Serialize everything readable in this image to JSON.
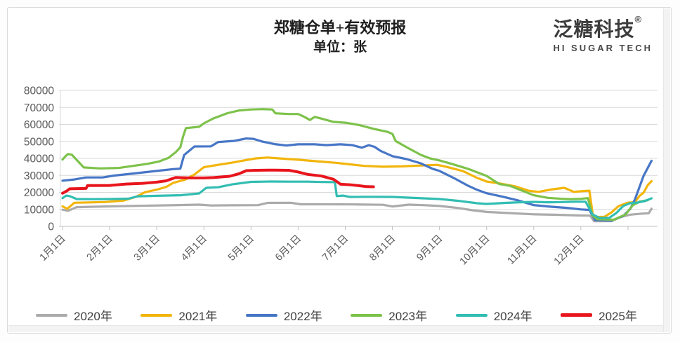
{
  "header": {
    "title": "郑糖仓单+有效预报",
    "subtitle": "单位：张"
  },
  "logo": {
    "brand": "泛糖科技",
    "registered": "®",
    "tagline": "HI SUGAR TECH"
  },
  "chart_data": {
    "type": "line",
    "title": "郑糖仓单+有效预报",
    "unit": "张",
    "grid": true,
    "legend_position": "bottom",
    "x_axis": {
      "tick_labels": [
        "1月1日",
        "2月1日",
        "3月1日",
        "4月1日",
        "5月1日",
        "6月1日",
        "7月1日",
        "8月1日",
        "9月1日",
        "10月1日",
        "11月1日",
        "12月1日"
      ],
      "note": "series x values are months since Jan 1 (0 = 1月1日, 11 = 12月1日)",
      "xlim": [
        0,
        12.6
      ]
    },
    "y_axis": {
      "min": 0,
      "max": 80000,
      "step": 10000,
      "tick_labels": [
        "0",
        "10000",
        "20000",
        "30000",
        "40000",
        "50000",
        "60000",
        "70000",
        "80000"
      ]
    },
    "axis_label_color": "#595959",
    "gridline_color": "#d9d9d9",
    "series": [
      {
        "name": "2020年",
        "color": "#ABABAB",
        "width": 3.2,
        "points": [
          [
            0,
            9800
          ],
          [
            0.12,
            9200
          ],
          [
            0.3,
            11300
          ],
          [
            0.9,
            11700
          ],
          [
            1.6,
            12100
          ],
          [
            2.3,
            12400
          ],
          [
            2.9,
            12800
          ],
          [
            3.15,
            12300
          ],
          [
            3.6,
            12400
          ],
          [
            4.15,
            12500
          ],
          [
            4.35,
            13800
          ],
          [
            4.85,
            13900
          ],
          [
            5.05,
            13000
          ],
          [
            5.6,
            13000
          ],
          [
            6.2,
            12900
          ],
          [
            6.8,
            12700
          ],
          [
            7.0,
            11700
          ],
          [
            7.35,
            12800
          ],
          [
            7.65,
            12500
          ],
          [
            8.0,
            12000
          ],
          [
            8.4,
            10800
          ],
          [
            8.7,
            9500
          ],
          [
            9.0,
            8500
          ],
          [
            9.5,
            7800
          ],
          [
            10.0,
            7100
          ],
          [
            10.5,
            6800
          ],
          [
            11.0,
            6400
          ],
          [
            11.2,
            6300
          ],
          [
            11.28,
            3000
          ],
          [
            11.65,
            3100
          ],
          [
            11.85,
            5600
          ],
          [
            12.05,
            6900
          ],
          [
            12.3,
            7500
          ],
          [
            12.44,
            7700
          ],
          [
            12.5,
            10400
          ]
        ]
      },
      {
        "name": "2021年",
        "color": "#F2B50B",
        "width": 3.2,
        "points": [
          [
            0,
            11800
          ],
          [
            0.1,
            10300
          ],
          [
            0.25,
            13900
          ],
          [
            0.9,
            14300
          ],
          [
            1.3,
            15200
          ],
          [
            1.55,
            17300
          ],
          [
            1.75,
            20100
          ],
          [
            2.0,
            21600
          ],
          [
            2.2,
            23200
          ],
          [
            2.35,
            25600
          ],
          [
            2.6,
            27500
          ],
          [
            2.8,
            30500
          ],
          [
            3.0,
            34800
          ],
          [
            3.3,
            36200
          ],
          [
            3.6,
            37500
          ],
          [
            3.85,
            38800
          ],
          [
            4.1,
            40000
          ],
          [
            4.35,
            40500
          ],
          [
            4.7,
            39800
          ],
          [
            5.0,
            39200
          ],
          [
            5.4,
            38300
          ],
          [
            5.8,
            37400
          ],
          [
            6.1,
            36500
          ],
          [
            6.4,
            35600
          ],
          [
            6.8,
            35100
          ],
          [
            7.2,
            35300
          ],
          [
            7.6,
            35800
          ],
          [
            7.95,
            36200
          ],
          [
            8.15,
            35000
          ],
          [
            8.5,
            32500
          ],
          [
            8.8,
            28500
          ],
          [
            9.0,
            26400
          ],
          [
            9.3,
            25100
          ],
          [
            9.6,
            23600
          ],
          [
            9.9,
            20900
          ],
          [
            10.1,
            20300
          ],
          [
            10.4,
            21800
          ],
          [
            10.65,
            22700
          ],
          [
            10.85,
            20300
          ],
          [
            11.05,
            20800
          ],
          [
            11.18,
            21000
          ],
          [
            11.26,
            5500
          ],
          [
            11.5,
            5600
          ],
          [
            11.65,
            8200
          ],
          [
            11.8,
            11900
          ],
          [
            12.0,
            14000
          ],
          [
            12.15,
            14300
          ],
          [
            12.25,
            18100
          ],
          [
            12.33,
            19800
          ],
          [
            12.42,
            24300
          ],
          [
            12.5,
            26600
          ]
        ]
      },
      {
        "name": "2022年",
        "color": "#4776C6",
        "width": 3.2,
        "points": [
          [
            0,
            26900
          ],
          [
            0.25,
            27600
          ],
          [
            0.5,
            28800
          ],
          [
            0.85,
            28800
          ],
          [
            1.1,
            29900
          ],
          [
            1.5,
            31100
          ],
          [
            2.0,
            32600
          ],
          [
            2.35,
            33700
          ],
          [
            2.5,
            34000
          ],
          [
            2.58,
            42000
          ],
          [
            2.8,
            47000
          ],
          [
            3.15,
            47100
          ],
          [
            3.3,
            49600
          ],
          [
            3.65,
            50300
          ],
          [
            3.9,
            51700
          ],
          [
            4.05,
            51500
          ],
          [
            4.25,
            49800
          ],
          [
            4.5,
            48400
          ],
          [
            4.75,
            47600
          ],
          [
            5.0,
            48300
          ],
          [
            5.35,
            48300
          ],
          [
            5.6,
            47800
          ],
          [
            5.9,
            48300
          ],
          [
            6.15,
            47800
          ],
          [
            6.35,
            46300
          ],
          [
            6.5,
            47800
          ],
          [
            6.62,
            46800
          ],
          [
            6.75,
            44400
          ],
          [
            7.0,
            41300
          ],
          [
            7.3,
            39600
          ],
          [
            7.6,
            37100
          ],
          [
            7.85,
            33900
          ],
          [
            8.0,
            32600
          ],
          [
            8.3,
            28500
          ],
          [
            8.6,
            24000
          ],
          [
            8.8,
            21500
          ],
          [
            9.0,
            19500
          ],
          [
            9.35,
            17400
          ],
          [
            9.65,
            15400
          ],
          [
            10.0,
            12500
          ],
          [
            10.35,
            11600
          ],
          [
            10.7,
            10900
          ],
          [
            11.0,
            10000
          ],
          [
            11.18,
            9700
          ],
          [
            11.3,
            3700
          ],
          [
            11.65,
            3400
          ],
          [
            11.9,
            6100
          ],
          [
            12.05,
            10300
          ],
          [
            12.15,
            16000
          ],
          [
            12.25,
            23600
          ],
          [
            12.33,
            29700
          ],
          [
            12.5,
            38600
          ]
        ]
      },
      {
        "name": "2023年",
        "color": "#7DC24B",
        "width": 3.2,
        "points": [
          [
            0,
            39300
          ],
          [
            0.07,
            41500
          ],
          [
            0.12,
            42600
          ],
          [
            0.2,
            42100
          ],
          [
            0.32,
            38500
          ],
          [
            0.45,
            34700
          ],
          [
            0.8,
            34100
          ],
          [
            1.2,
            34400
          ],
          [
            1.5,
            35600
          ],
          [
            1.8,
            36800
          ],
          [
            2.05,
            38200
          ],
          [
            2.25,
            40300
          ],
          [
            2.4,
            43600
          ],
          [
            2.5,
            46500
          ],
          [
            2.56,
            53000
          ],
          [
            2.62,
            57800
          ],
          [
            2.9,
            58600
          ],
          [
            3.0,
            60600
          ],
          [
            3.2,
            63500
          ],
          [
            3.5,
            66600
          ],
          [
            3.75,
            68200
          ],
          [
            4.0,
            68800
          ],
          [
            4.25,
            69000
          ],
          [
            4.45,
            68800
          ],
          [
            4.52,
            66500
          ],
          [
            4.8,
            66100
          ],
          [
            5.0,
            66100
          ],
          [
            5.12,
            64600
          ],
          [
            5.25,
            62600
          ],
          [
            5.35,
            64400
          ],
          [
            5.5,
            63400
          ],
          [
            5.75,
            61500
          ],
          [
            6.0,
            61000
          ],
          [
            6.3,
            59600
          ],
          [
            6.6,
            57400
          ],
          [
            6.9,
            55600
          ],
          [
            7.0,
            54400
          ],
          [
            7.07,
            50200
          ],
          [
            7.3,
            46600
          ],
          [
            7.6,
            42100
          ],
          [
            7.8,
            40000
          ],
          [
            8.0,
            38800
          ],
          [
            8.3,
            36400
          ],
          [
            8.6,
            33900
          ],
          [
            9.0,
            29700
          ],
          [
            9.27,
            24900
          ],
          [
            9.5,
            23800
          ],
          [
            9.8,
            20500
          ],
          [
            10.0,
            18300
          ],
          [
            10.3,
            16800
          ],
          [
            10.6,
            16200
          ],
          [
            10.8,
            16000
          ],
          [
            11.0,
            16200
          ],
          [
            11.15,
            16600
          ],
          [
            11.25,
            6300
          ],
          [
            11.35,
            4200
          ],
          [
            11.7,
            3900
          ],
          [
            11.95,
            7000
          ],
          [
            12.1,
            12400
          ],
          [
            12.25,
            14600
          ],
          [
            12.42,
            15400
          ]
        ]
      },
      {
        "name": "2024年",
        "color": "#32BDB2",
        "width": 3.2,
        "points": [
          [
            0,
            16600
          ],
          [
            0.08,
            18100
          ],
          [
            0.15,
            17800
          ],
          [
            0.3,
            16100
          ],
          [
            0.6,
            16000
          ],
          [
            1.0,
            16100
          ],
          [
            1.4,
            16300
          ],
          [
            1.6,
            17700
          ],
          [
            2.0,
            18000
          ],
          [
            2.5,
            18300
          ],
          [
            2.9,
            19400
          ],
          [
            3.05,
            22700
          ],
          [
            3.3,
            23000
          ],
          [
            3.6,
            24700
          ],
          [
            4.0,
            26200
          ],
          [
            4.4,
            26400
          ],
          [
            4.8,
            26300
          ],
          [
            5.2,
            26300
          ],
          [
            5.5,
            26100
          ],
          [
            5.78,
            26000
          ],
          [
            5.82,
            17800
          ],
          [
            5.95,
            18100
          ],
          [
            6.1,
            17300
          ],
          [
            6.5,
            17400
          ],
          [
            7.0,
            17300
          ],
          [
            7.5,
            16700
          ],
          [
            8.0,
            16100
          ],
          [
            8.4,
            15000
          ],
          [
            8.8,
            13600
          ],
          [
            9.0,
            13200
          ],
          [
            9.4,
            13800
          ],
          [
            9.7,
            14200
          ],
          [
            10.0,
            14400
          ],
          [
            10.3,
            14200
          ],
          [
            10.6,
            14300
          ],
          [
            10.9,
            14500
          ],
          [
            11.1,
            14500
          ],
          [
            11.25,
            7000
          ],
          [
            11.4,
            4900
          ],
          [
            11.6,
            5000
          ],
          [
            11.75,
            7800
          ],
          [
            11.9,
            12000
          ],
          [
            12.05,
            13700
          ],
          [
            12.2,
            14000
          ],
          [
            12.35,
            14800
          ],
          [
            12.5,
            16500
          ]
        ]
      },
      {
        "name": "2025年",
        "color": "#E8151D",
        "width": 4,
        "points": [
          [
            0,
            19500
          ],
          [
            0.1,
            21000
          ],
          [
            0.15,
            22100
          ],
          [
            0.5,
            22300
          ],
          [
            0.53,
            24000
          ],
          [
            1.0,
            24100
          ],
          [
            1.35,
            24900
          ],
          [
            1.7,
            25300
          ],
          [
            2.0,
            26000
          ],
          [
            2.2,
            26800
          ],
          [
            2.4,
            28800
          ],
          [
            2.7,
            28500
          ],
          [
            3.0,
            28500
          ],
          [
            3.2,
            28700
          ],
          [
            3.55,
            29500
          ],
          [
            3.75,
            31000
          ],
          [
            3.9,
            32800
          ],
          [
            4.1,
            33000
          ],
          [
            4.5,
            33100
          ],
          [
            4.8,
            33000
          ],
          [
            5.0,
            32000
          ],
          [
            5.2,
            30600
          ],
          [
            5.5,
            29600
          ],
          [
            5.75,
            27700
          ],
          [
            5.9,
            24800
          ],
          [
            6.1,
            24500
          ],
          [
            6.3,
            23900
          ],
          [
            6.45,
            23400
          ],
          [
            6.6,
            23300
          ]
        ]
      }
    ]
  }
}
